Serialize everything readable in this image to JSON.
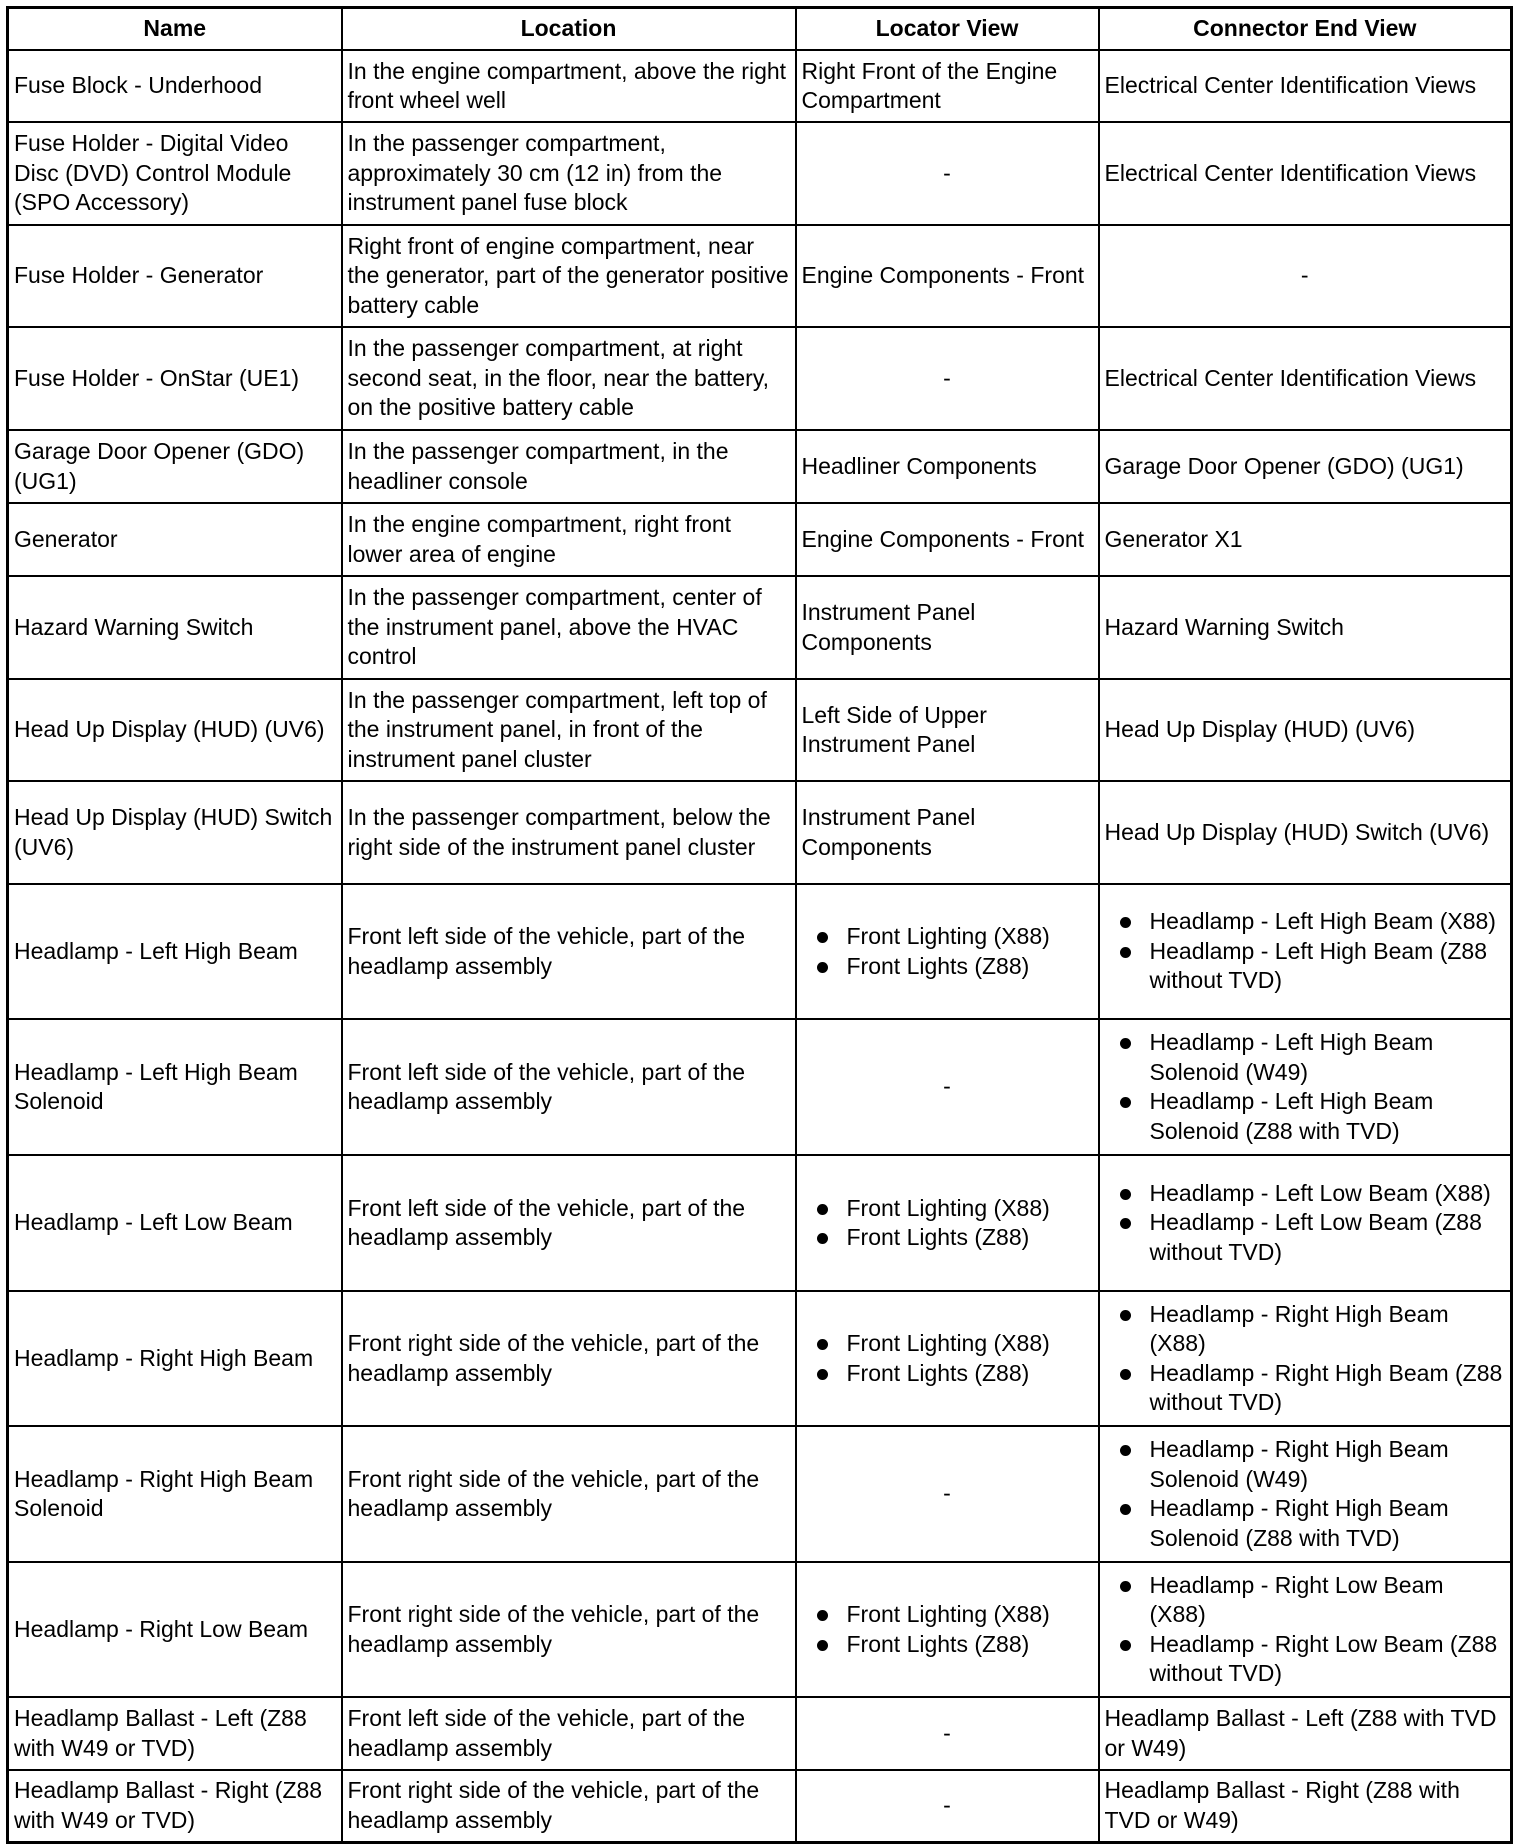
{
  "headers": [
    "Name",
    "Location",
    "Locator View",
    "Connector End View"
  ],
  "rows": [
    {
      "name": "Fuse Block - Underhood",
      "location": "In the engine compartment, above the right front wheel well",
      "locator": [
        "Right Front of the Engine Compartment"
      ],
      "connector": [
        "Electrical Center Identification Views"
      ]
    },
    {
      "name": "Fuse Holder - Digital Video Disc (DVD) Control Module (SPO Accessory)",
      "location": "In the passenger compartment, approximately 30 cm (12 in) from the instrument panel fuse block",
      "locator": [
        "-"
      ],
      "connector": [
        "Electrical Center Identification Views"
      ]
    },
    {
      "name": "Fuse Holder - Generator",
      "location": "Right front of engine compartment, near the generator, part of the generator positive battery cable",
      "locator": [
        "Engine Components - Front"
      ],
      "connector": [
        "-"
      ]
    },
    {
      "name": "Fuse Holder - OnStar (UE1)",
      "location": "In the passenger compartment, at right second seat, in the floor, near the battery, on the positive battery cable",
      "locator": [
        "-"
      ],
      "connector": [
        "Electrical Center Identification Views"
      ]
    },
    {
      "name": "Garage Door Opener (GDO) (UG1)",
      "location": "In the passenger compartment, in the headliner console",
      "locator": [
        "Headliner Components"
      ],
      "connector": [
        "Garage Door Opener (GDO) (UG1)"
      ]
    },
    {
      "name": "Generator",
      "location": "In the engine compartment, right front lower area of engine",
      "locator": [
        "Engine Components - Front"
      ],
      "connector": [
        "Generator X1"
      ]
    },
    {
      "name": "Hazard Warning Switch",
      "location": "In the passenger compartment, center of the instrument panel, above the HVAC control",
      "locator": [
        "Instrument Panel Components"
      ],
      "connector": [
        "Hazard Warning Switch"
      ]
    },
    {
      "name": "Head Up Display (HUD) (UV6)",
      "location": "In the passenger compartment, left top of the instrument panel, in front of the instrument panel cluster",
      "locator": [
        "Left Side of Upper Instrument Panel"
      ],
      "connector": [
        "Head Up Display (HUD) (UV6)"
      ]
    },
    {
      "name": "Head Up Display (HUD) Switch (UV6)",
      "location": "In the passenger compartment, below the right side of the instrument panel cluster",
      "locator": [
        "Instrument Panel Components"
      ],
      "connector": [
        "Head Up Display (HUD) Switch (UV6)"
      ]
    },
    {
      "name": "Headlamp - Left High Beam",
      "location": "Front left side of the vehicle, part of the headlamp assembly",
      "locator": [
        "Front Lighting (X88)",
        "Front Lights (Z88)"
      ],
      "connector": [
        "Headlamp - Left High Beam (X88)",
        "Headlamp - Left High Beam (Z88 without TVD)"
      ]
    },
    {
      "name": "Headlamp - Left High Beam Solenoid",
      "location": "Front left side of the vehicle, part of the headlamp assembly",
      "locator": [
        "-"
      ],
      "connector": [
        "Headlamp - Left High Beam Solenoid (W49)",
        "Headlamp - Left High Beam Solenoid (Z88 with TVD)"
      ]
    },
    {
      "name": "Headlamp - Left Low Beam",
      "location": "Front left side of the vehicle, part of the headlamp assembly",
      "locator": [
        "Front Lighting (X88)",
        "Front Lights (Z88)"
      ],
      "connector": [
        "Headlamp - Left Low Beam (X88)",
        "Headlamp - Left Low Beam (Z88 without TVD)"
      ]
    },
    {
      "name": "Headlamp - Right High Beam",
      "location": "Front right side of the vehicle, part of the headlamp assembly",
      "locator": [
        "Front Lighting (X88)",
        "Front Lights (Z88)"
      ],
      "connector": [
        "Headlamp - Right High Beam (X88)",
        "Headlamp - Right High Beam (Z88 without TVD)"
      ]
    },
    {
      "name": "Headlamp - Right High Beam Solenoid",
      "location": "Front right side of the vehicle, part of the headlamp assembly",
      "locator": [
        "-"
      ],
      "connector": [
        "Headlamp - Right High Beam Solenoid (W49)",
        "Headlamp - Right High Beam Solenoid (Z88 with TVD)"
      ]
    },
    {
      "name": "Headlamp - Right Low Beam",
      "location": "Front right side of the vehicle, part of the headlamp assembly",
      "locator": [
        "Front Lighting (X88)",
        "Front Lights (Z88)"
      ],
      "connector": [
        "Headlamp - Right Low Beam (X88)",
        "Headlamp - Right Low Beam (Z88 without TVD)"
      ]
    },
    {
      "name": "Headlamp Ballast - Left (Z88 with W49 or TVD)",
      "location": "Front left side of the vehicle, part of the headlamp assembly",
      "locator": [
        "-"
      ],
      "connector": [
        "Headlamp Ballast - Left (Z88 with TVD or W49)"
      ]
    },
    {
      "name": "Headlamp Ballast - Right (Z88 with W49 or TVD)",
      "location": "Front right side of the vehicle, part of the headlamp assembly",
      "locator": [
        "-"
      ],
      "connector": [
        "Headlamp Ballast - Right (Z88 with TVD or W49)"
      ]
    }
  ]
}
